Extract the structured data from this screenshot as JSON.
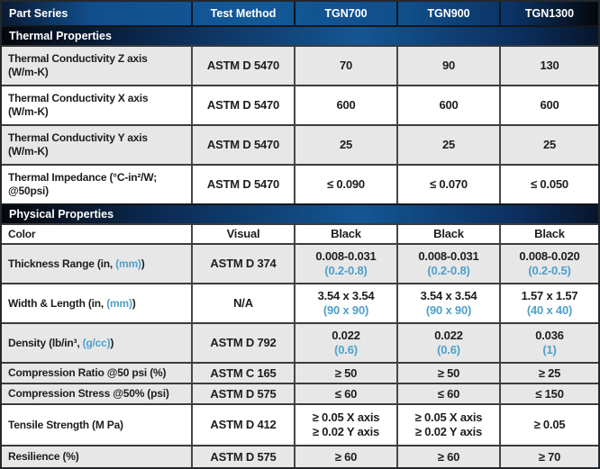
{
  "header": {
    "part_series": "Part Series",
    "test_method": "Test Method",
    "tgn700": "TGN700",
    "tgn900": "TGN900",
    "tgn1300": "TGN1300"
  },
  "sections": {
    "thermal": "Thermal Properties",
    "physical": "Physical Properties"
  },
  "colors": {
    "accent_blue": "#4f9fca",
    "header_navy": "#135998",
    "row_gray": "#e7e7e7"
  },
  "rows": [
    {
      "label": {
        "pre": "Thermal Conductivity Z axis",
        "blue": "",
        "post": "",
        "line2": "(W/m-K)"
      },
      "method": "ASTM D 5470",
      "values": [
        {
          "main": "70",
          "sub": ""
        },
        {
          "main": "90",
          "sub": ""
        },
        {
          "main": "130",
          "sub": ""
        }
      ]
    },
    {
      "label": {
        "pre": "Thermal Conductivity X axis",
        "blue": "",
        "post": "",
        "line2": "(W/m-K)"
      },
      "method": "ASTM D 5470",
      "values": [
        {
          "main": "600",
          "sub": ""
        },
        {
          "main": "600",
          "sub": ""
        },
        {
          "main": "600",
          "sub": ""
        }
      ]
    },
    {
      "label": {
        "pre": "Thermal Conductivity Y axis",
        "blue": "",
        "post": "",
        "line2": "(W/m-K)"
      },
      "method": "ASTM D 5470",
      "values": [
        {
          "main": "25",
          "sub": ""
        },
        {
          "main": "25",
          "sub": ""
        },
        {
          "main": "25",
          "sub": ""
        }
      ]
    },
    {
      "label": {
        "pre": "Thermal Impedance (°C-in²/W;",
        "blue": "",
        "post": "",
        "line2": "@50psi)"
      },
      "method": "ASTM D 5470",
      "values": [
        {
          "main": "≤ 0.090",
          "sub": ""
        },
        {
          "main": "≤ 0.070",
          "sub": ""
        },
        {
          "main": "≤ 0.050",
          "sub": ""
        }
      ]
    },
    {
      "label": {
        "pre": "Color",
        "blue": "",
        "post": "",
        "line2": ""
      },
      "method": "Visual",
      "values": [
        {
          "main": "Black",
          "sub": ""
        },
        {
          "main": "Black",
          "sub": ""
        },
        {
          "main": "Black",
          "sub": ""
        }
      ]
    },
    {
      "label": {
        "pre": "Thickness Range (in, ",
        "blue": "(mm)",
        "post": ")",
        "line2": ""
      },
      "method": "ASTM D 374",
      "values": [
        {
          "main": "0.008-0.031",
          "sub": "(0.2-0.8)"
        },
        {
          "main": "0.008-0.031",
          "sub": "(0.2-0.8)"
        },
        {
          "main": "0.008-0.020",
          "sub": "(0.2-0.5)"
        }
      ]
    },
    {
      "label": {
        "pre": "Width & Length (in, ",
        "blue": "(mm)",
        "post": ")",
        "line2": ""
      },
      "method": "N/A",
      "values": [
        {
          "main": "3.54 x 3.54",
          "sub": "(90 x 90)"
        },
        {
          "main": "3.54 x 3.54",
          "sub": "(90 x 90)"
        },
        {
          "main": "1.57 x 1.57",
          "sub": "(40 x 40)"
        }
      ]
    },
    {
      "label": {
        "pre": "Density (lb/in³, ",
        "blue": "(g/cc)",
        "post": ")",
        "line2": ""
      },
      "method": "ASTM D 792",
      "values": [
        {
          "main": "0.022",
          "sub": "(0.6)"
        },
        {
          "main": "0.022",
          "sub": "(0.6)"
        },
        {
          "main": "0.036",
          "sub": "(1)"
        }
      ]
    },
    {
      "label": {
        "pre": "Compression Ratio @50 psi (%)",
        "blue": "",
        "post": "",
        "line2": ""
      },
      "method": "ASTM C 165",
      "values": [
        {
          "main": "≥ 50",
          "sub": ""
        },
        {
          "main": "≥ 50",
          "sub": ""
        },
        {
          "main": "≥ 25",
          "sub": ""
        }
      ]
    },
    {
      "label": {
        "pre": "Compression Stress @50% (psi)",
        "blue": "",
        "post": "",
        "line2": ""
      },
      "method": "ASTM D 575",
      "values": [
        {
          "main": "≤ 60",
          "sub": ""
        },
        {
          "main": "≤ 60",
          "sub": ""
        },
        {
          "main": "≤ 150",
          "sub": ""
        }
      ]
    },
    {
      "label": {
        "pre": "Tensile Strength (M Pa)",
        "blue": "",
        "post": "",
        "line2": ""
      },
      "method": "ASTM D 412",
      "values": [
        {
          "main": "≥ 0.05 X axis",
          "sub": "≥ 0.02 Y axis"
        },
        {
          "main": "≥ 0.05 X axis",
          "sub": "≥ 0.02 Y axis"
        },
        {
          "main": "≥ 0.05",
          "sub": ""
        }
      ]
    },
    {
      "label": {
        "pre": "Resilience (%)",
        "blue": "",
        "post": "",
        "line2": ""
      },
      "method": "ASTM D 575",
      "values": [
        {
          "main": "≥ 60",
          "sub": ""
        },
        {
          "main": "≥ 60",
          "sub": ""
        },
        {
          "main": "≥ 70",
          "sub": ""
        }
      ]
    }
  ]
}
